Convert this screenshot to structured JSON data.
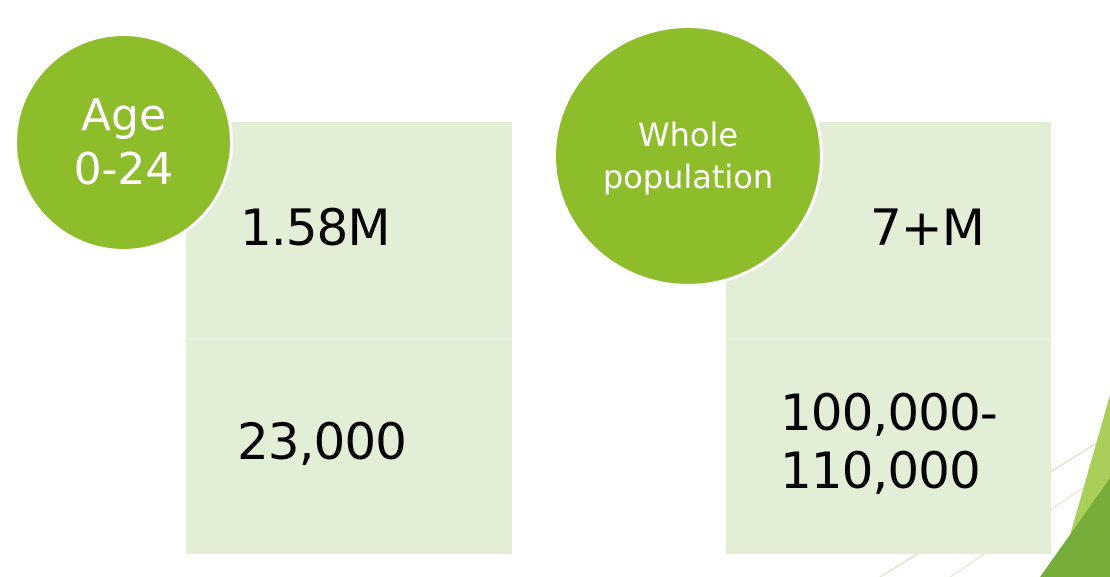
{
  "groups": [
    {
      "circle_lines": [
        "Age",
        "0-24"
      ],
      "values": [
        "1.58M",
        "23,000"
      ]
    },
    {
      "circle_lines": [
        "Whole",
        "population"
      ],
      "values": [
        "7+M",
        "100,000-",
        "110,000"
      ]
    }
  ],
  "colors": {
    "circle": "#8dbd2a",
    "panel": "#e2eed6",
    "accent_dark": "#76ad3a",
    "text": "#000000"
  }
}
